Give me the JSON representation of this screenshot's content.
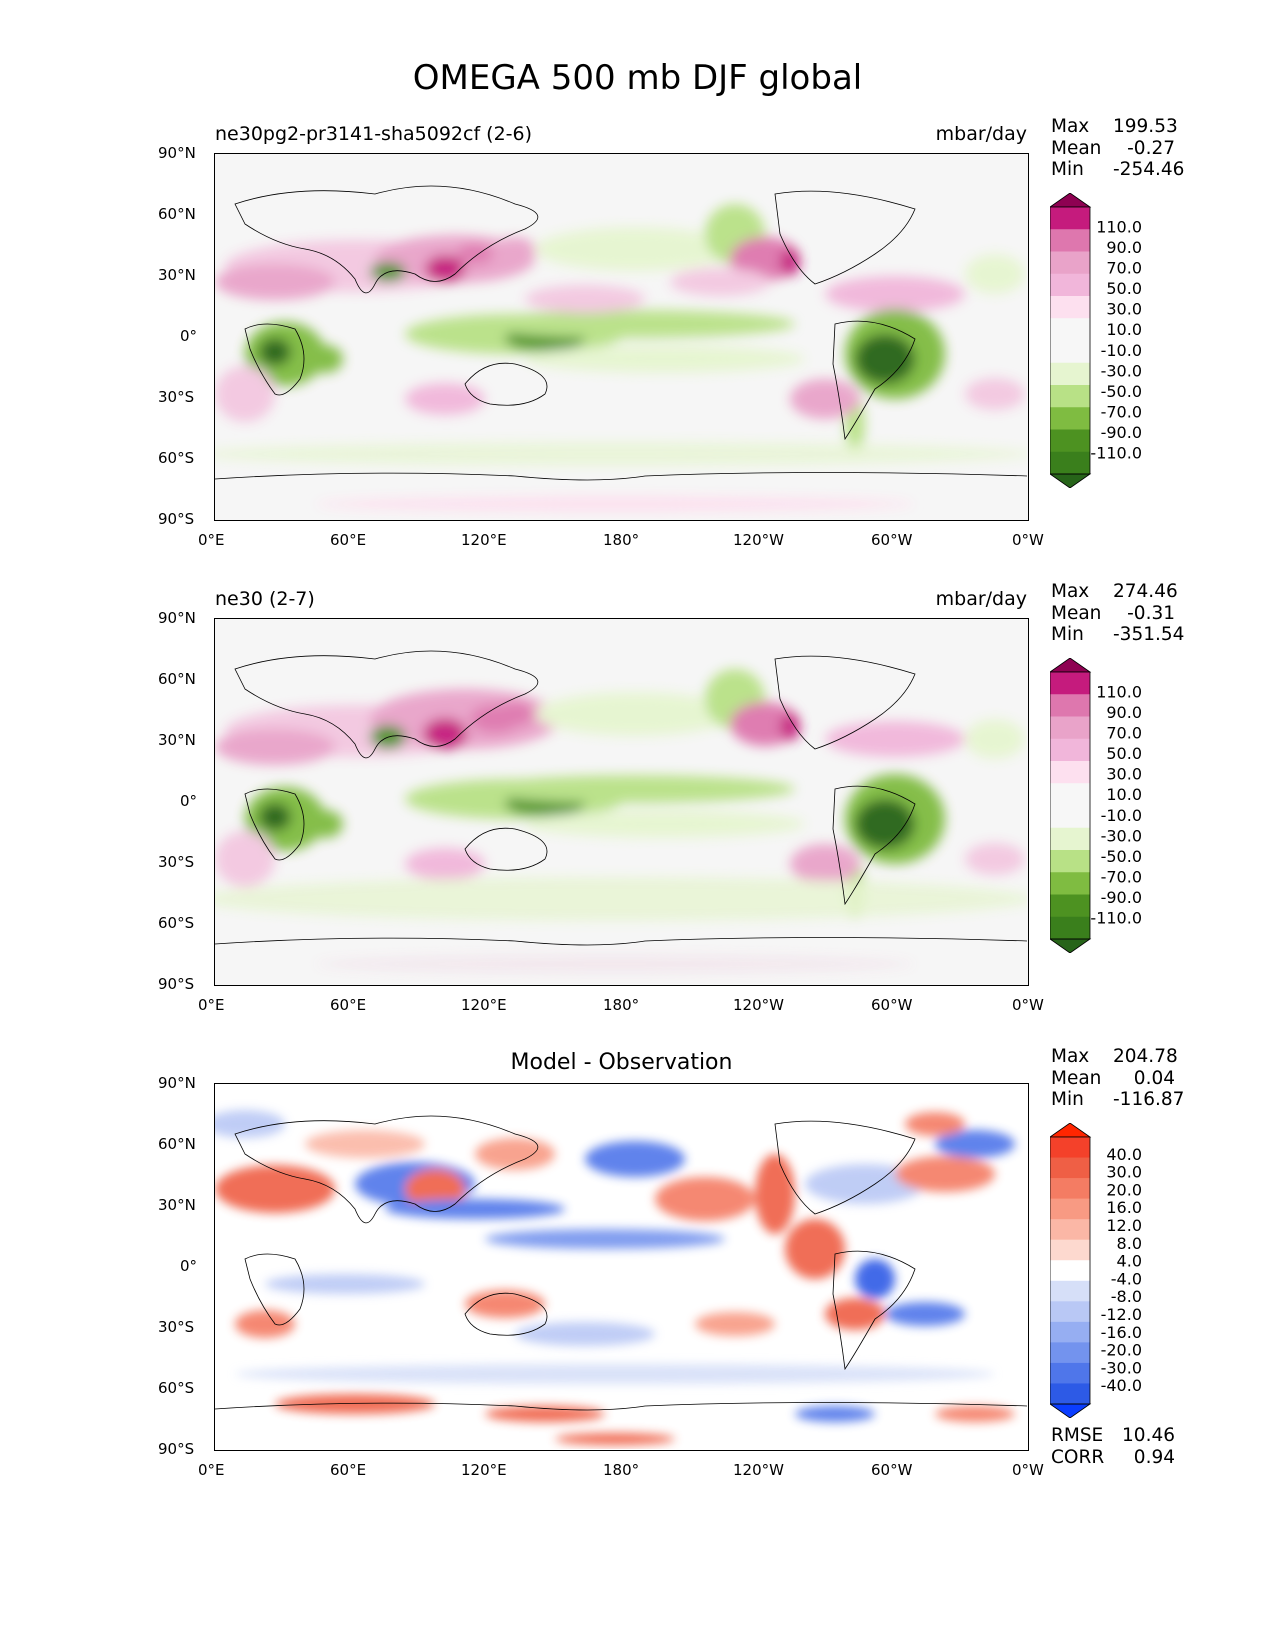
{
  "title": "OMEGA 500 mb DJF global",
  "x_ticks": [
    "0°E",
    "60°E",
    "120°E",
    "180°",
    "120°W",
    "60°W",
    "0°W"
  ],
  "y_ticks": [
    "90°N",
    "60°N",
    "30°N",
    "0°",
    "30°S",
    "60°S",
    "90°S"
  ],
  "panels": [
    {
      "subtitle": "ne30pg2-pr3141-sha5092cf (2-6)",
      "units": "mbar/day",
      "stats": {
        "max_label": "Max",
        "max": "199.53",
        "mean_label": "Mean",
        "mean": "-0.27",
        "min_label": "Min",
        "min": "-254.46"
      },
      "colorbar": {
        "labels": [
          "110.0",
          "90.0",
          "70.0",
          "50.0",
          "30.0",
          "10.0",
          "-10.0",
          "-30.0",
          "-50.0",
          "-70.0",
          "-90.0",
          "-110.0"
        ],
        "colors": [
          "#8e0152",
          "#c51b7d",
          "#de77ae",
          "#e9a3c9",
          "#f1b6da",
          "#fde0ef",
          "#f7f7f7",
          "#f7f7f7",
          "#e6f5d0",
          "#b8e186",
          "#7fbc41",
          "#4d9221",
          "#3a7f1c",
          "#276419"
        ]
      }
    },
    {
      "subtitle": "ne30 (2-7)",
      "units": "mbar/day",
      "stats": {
        "max_label": "Max",
        "max": "274.46",
        "mean_label": "Mean",
        "mean": "-0.31",
        "min_label": "Min",
        "min": "-351.54"
      },
      "colorbar": {
        "labels": [
          "110.0",
          "90.0",
          "70.0",
          "50.0",
          "30.0",
          "10.0",
          "-10.0",
          "-30.0",
          "-50.0",
          "-70.0",
          "-90.0",
          "-110.0"
        ],
        "colors": [
          "#8e0152",
          "#c51b7d",
          "#de77ae",
          "#e9a3c9",
          "#f1b6da",
          "#fde0ef",
          "#f7f7f7",
          "#f7f7f7",
          "#e6f5d0",
          "#b8e186",
          "#7fbc41",
          "#4d9221",
          "#3a7f1c",
          "#276419"
        ]
      }
    },
    {
      "subtitle": "Model - Observation",
      "units": "",
      "stats": {
        "max_label": "Max",
        "max": "204.78",
        "mean_label": "Mean",
        "mean": "0.04",
        "min_label": "Min",
        "min": "-116.87"
      },
      "colorbar": {
        "labels": [
          "40.0",
          "30.0",
          "20.0",
          "16.0",
          "12.0",
          "8.0",
          "4.0",
          "-4.0",
          "-8.0",
          "-12.0",
          "-16.0",
          "-20.0",
          "-30.0",
          "-40.0"
        ],
        "colors": [
          "#ff2600",
          "#f4412a",
          "#ef5f45",
          "#f47c63",
          "#f89a83",
          "#fbb7a6",
          "#fdd9cf",
          "#ffffff",
          "#d6dff8",
          "#b9c8f5",
          "#96aef2",
          "#7393ee",
          "#4f76ea",
          "#2d5ae6",
          "#0a3dff"
        ]
      },
      "metrics": {
        "rmse_label": "RMSE",
        "rmse": "10.46",
        "corr_label": "CORR",
        "corr": "0.94"
      }
    }
  ]
}
